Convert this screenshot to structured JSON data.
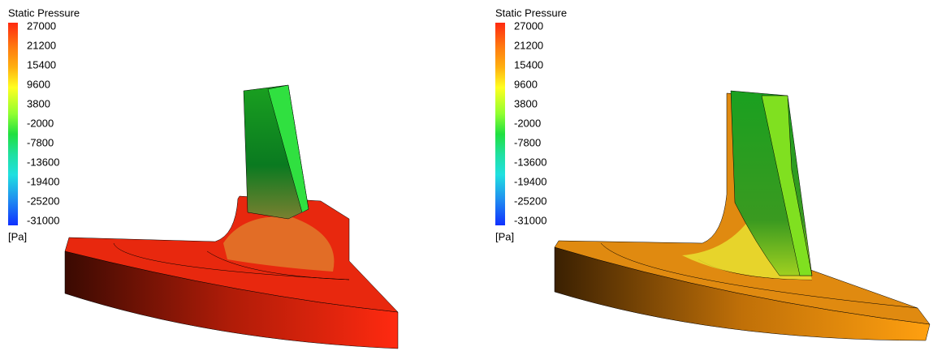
{
  "panels": [
    {
      "legend": {
        "title": "Static Pressure",
        "ticks": [
          27000,
          21200,
          15400,
          9600,
          3800,
          -2000,
          -7800,
          -13600,
          -19400,
          -25200,
          -31000
        ],
        "unit": "[Pa]"
      }
    },
    {
      "legend": {
        "title": "Static Pressure",
        "ticks": [
          27000,
          21200,
          15400,
          9600,
          3800,
          -2000,
          -7800,
          -13600,
          -19400,
          -25200,
          -31000
        ],
        "unit": "[Pa]"
      }
    }
  ]
}
